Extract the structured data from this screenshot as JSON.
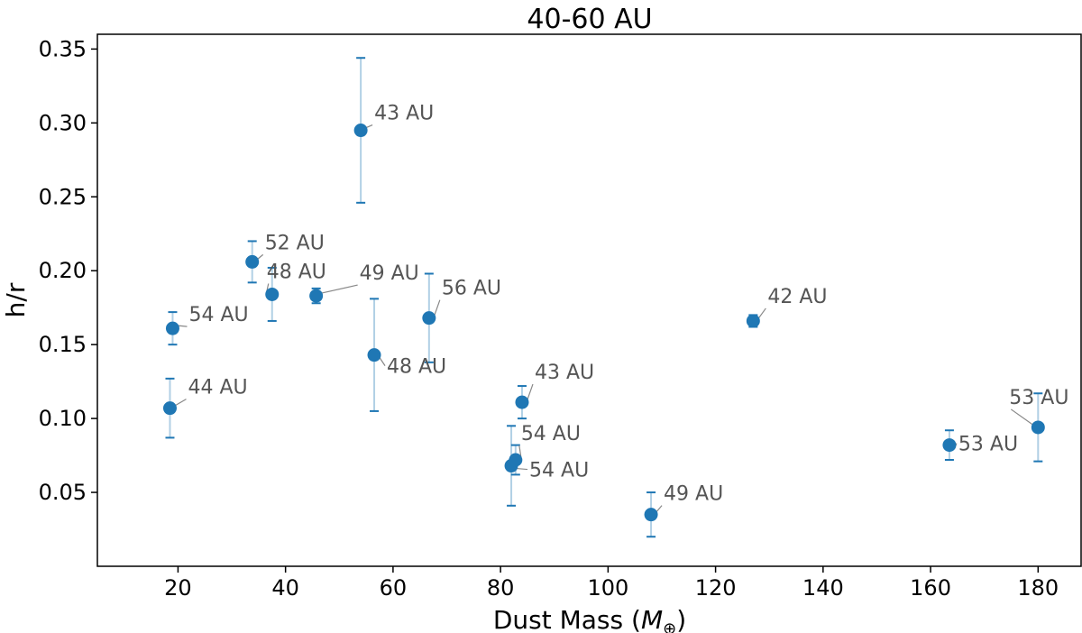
{
  "chart_data": {
    "type": "scatter",
    "title": "40-60 AU",
    "xlabel": "Dust Mass (",
    "xlabel_symbol": "M",
    "xlabel_subscript": "⊕",
    "xlabel_close": ")",
    "ylabel": "h/r",
    "xlim": [
      5,
      188
    ],
    "ylim": [
      0.0,
      0.36
    ],
    "x_ticks": [
      "20",
      "40",
      "60",
      "80",
      "100",
      "120",
      "140",
      "160",
      "180"
    ],
    "y_ticks": [
      "0.05",
      "0.10",
      "0.15",
      "0.20",
      "0.25",
      "0.30",
      "0.35"
    ],
    "grid": false,
    "marker_color": "#1f77b4",
    "errorbar_color": "#1f77b4",
    "annotation_color": "#555555",
    "points": [
      {
        "x": 18.5,
        "y": 0.107,
        "lo": 0.087,
        "hi": 0.127,
        "label": "44 AU"
      },
      {
        "x": 19.0,
        "y": 0.161,
        "lo": 0.15,
        "hi": 0.172,
        "label": "54 AU"
      },
      {
        "x": 33.8,
        "y": 0.206,
        "lo": 0.192,
        "hi": 0.22,
        "label": "52 AU"
      },
      {
        "x": 37.5,
        "y": 0.184,
        "lo": 0.166,
        "hi": 0.202,
        "label": "48 AU"
      },
      {
        "x": 45.7,
        "y": 0.183,
        "lo": 0.178,
        "hi": 0.188,
        "label": "49 AU"
      },
      {
        "x": 54.0,
        "y": 0.295,
        "lo": 0.246,
        "hi": 0.344,
        "label": "43 AU"
      },
      {
        "x": 56.5,
        "y": 0.143,
        "lo": 0.105,
        "hi": 0.181,
        "label": "48 AU"
      },
      {
        "x": 66.7,
        "y": 0.168,
        "lo": 0.138,
        "hi": 0.198,
        "label": "56 AU"
      },
      {
        "x": 82.0,
        "y": 0.068,
        "lo": 0.041,
        "hi": 0.095,
        "label": "54 AU"
      },
      {
        "x": 82.8,
        "y": 0.072,
        "lo": 0.062,
        "hi": 0.082,
        "label": "54 AU"
      },
      {
        "x": 84.0,
        "y": 0.111,
        "lo": 0.1,
        "hi": 0.122,
        "label": "43 AU"
      },
      {
        "x": 108.0,
        "y": 0.035,
        "lo": 0.02,
        "hi": 0.05,
        "label": "49 AU"
      },
      {
        "x": 127.0,
        "y": 0.166,
        "lo": 0.162,
        "hi": 0.17,
        "label": "42 AU"
      },
      {
        "x": 163.5,
        "y": 0.082,
        "lo": 0.072,
        "hi": 0.092,
        "label": "53 AU"
      },
      {
        "x": 180.0,
        "y": 0.094,
        "lo": 0.071,
        "hi": 0.117,
        "label": "53 AU"
      }
    ]
  }
}
